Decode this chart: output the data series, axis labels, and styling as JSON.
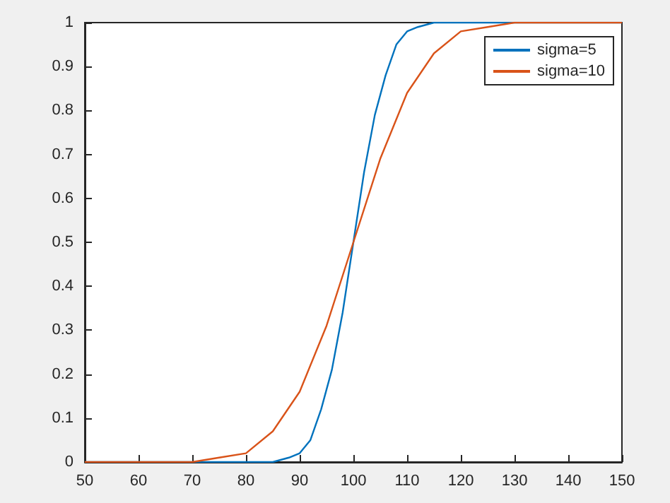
{
  "chart_data": {
    "type": "line",
    "xlim": [
      50,
      150
    ],
    "ylim": [
      0,
      1
    ],
    "xticks": [
      50,
      60,
      70,
      80,
      90,
      100,
      110,
      120,
      130,
      140,
      150
    ],
    "yticks": [
      0,
      0.1,
      0.2,
      0.3,
      0.4,
      0.5,
      0.6,
      0.7,
      0.8,
      0.9,
      1
    ],
    "grid": false,
    "legend": "top right",
    "marker": "none",
    "line_style": "solid",
    "series": [
      {
        "name": "sigma=5",
        "color": "#0072bd",
        "x": [
          50,
          70,
          80,
          85,
          88,
          90,
          92,
          94,
          96,
          98,
          100,
          102,
          104,
          106,
          108,
          110,
          112,
          115,
          120,
          150
        ],
        "values": [
          0,
          0,
          0,
          0,
          0.01,
          0.02,
          0.05,
          0.12,
          0.21,
          0.34,
          0.5,
          0.66,
          0.79,
          0.88,
          0.95,
          0.98,
          0.99,
          1,
          1,
          1
        ]
      },
      {
        "name": "sigma=10",
        "color": "#d95319",
        "x": [
          50,
          60,
          70,
          75,
          80,
          85,
          90,
          95,
          100,
          105,
          110,
          115,
          120,
          125,
          130,
          150
        ],
        "values": [
          0,
          0,
          0,
          0.01,
          0.02,
          0.07,
          0.16,
          0.31,
          0.5,
          0.69,
          0.84,
          0.93,
          0.98,
          0.99,
          1,
          1
        ]
      }
    ]
  }
}
